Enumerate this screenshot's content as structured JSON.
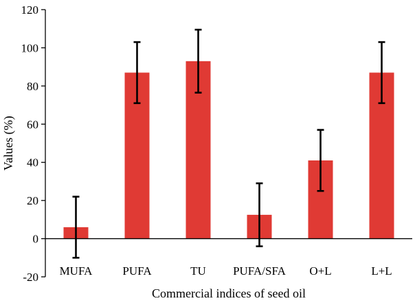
{
  "chart_data": {
    "type": "bar",
    "title": "",
    "xlabel": "Commercial indices of seed oil",
    "ylabel": "Values (%)",
    "categories": [
      "MUFA",
      "PUFA",
      "TU",
      "PUFA/SFA",
      "O+L",
      "L+L"
    ],
    "values": [
      6,
      87,
      93,
      12.5,
      41,
      87
    ],
    "error_low": [
      -10,
      71,
      76.5,
      -4,
      25,
      71
    ],
    "error_high": [
      22,
      103,
      109.5,
      29,
      57,
      103
    ],
    "ylim": [
      -20,
      120
    ],
    "yticks": [
      -20,
      0,
      20,
      40,
      60,
      80,
      100,
      120
    ],
    "bar_color": "#e03a34",
    "grid": false,
    "legend": "none"
  }
}
